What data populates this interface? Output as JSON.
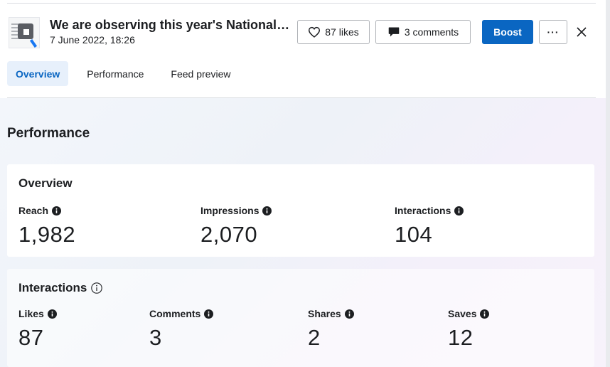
{
  "header": {
    "title": "We are observing this year's National Clean Air Day",
    "date": "7 June 2022, 18:26",
    "likes_label": "87 likes",
    "comments_label": "3 comments",
    "boost_label": "Boost",
    "more_label": "···"
  },
  "tabs": [
    {
      "label": "Overview",
      "active": true
    },
    {
      "label": "Performance",
      "active": false
    },
    {
      "label": "Feed preview",
      "active": false
    }
  ],
  "performance": {
    "title": "Performance",
    "overview": {
      "title": "Overview",
      "metrics": [
        {
          "label": "Reach",
          "value": "1,982"
        },
        {
          "label": "Impressions",
          "value": "2,070"
        },
        {
          "label": "Interactions",
          "value": "104"
        }
      ]
    },
    "interactions": {
      "title": "Interactions",
      "metrics": [
        {
          "label": "Likes",
          "value": "87"
        },
        {
          "label": "Comments",
          "value": "3"
        },
        {
          "label": "Shares",
          "value": "2"
        },
        {
          "label": "Saves",
          "value": "12"
        }
      ]
    }
  },
  "colors": {
    "accent": "#0a66c2",
    "tab_active_bg": "#e7f0fb",
    "border": "#b0b3b8"
  },
  "icons": {
    "like": "heart-outline-icon",
    "comment": "speech-bubble-icon",
    "close": "close-icon",
    "info": "info-icon"
  }
}
